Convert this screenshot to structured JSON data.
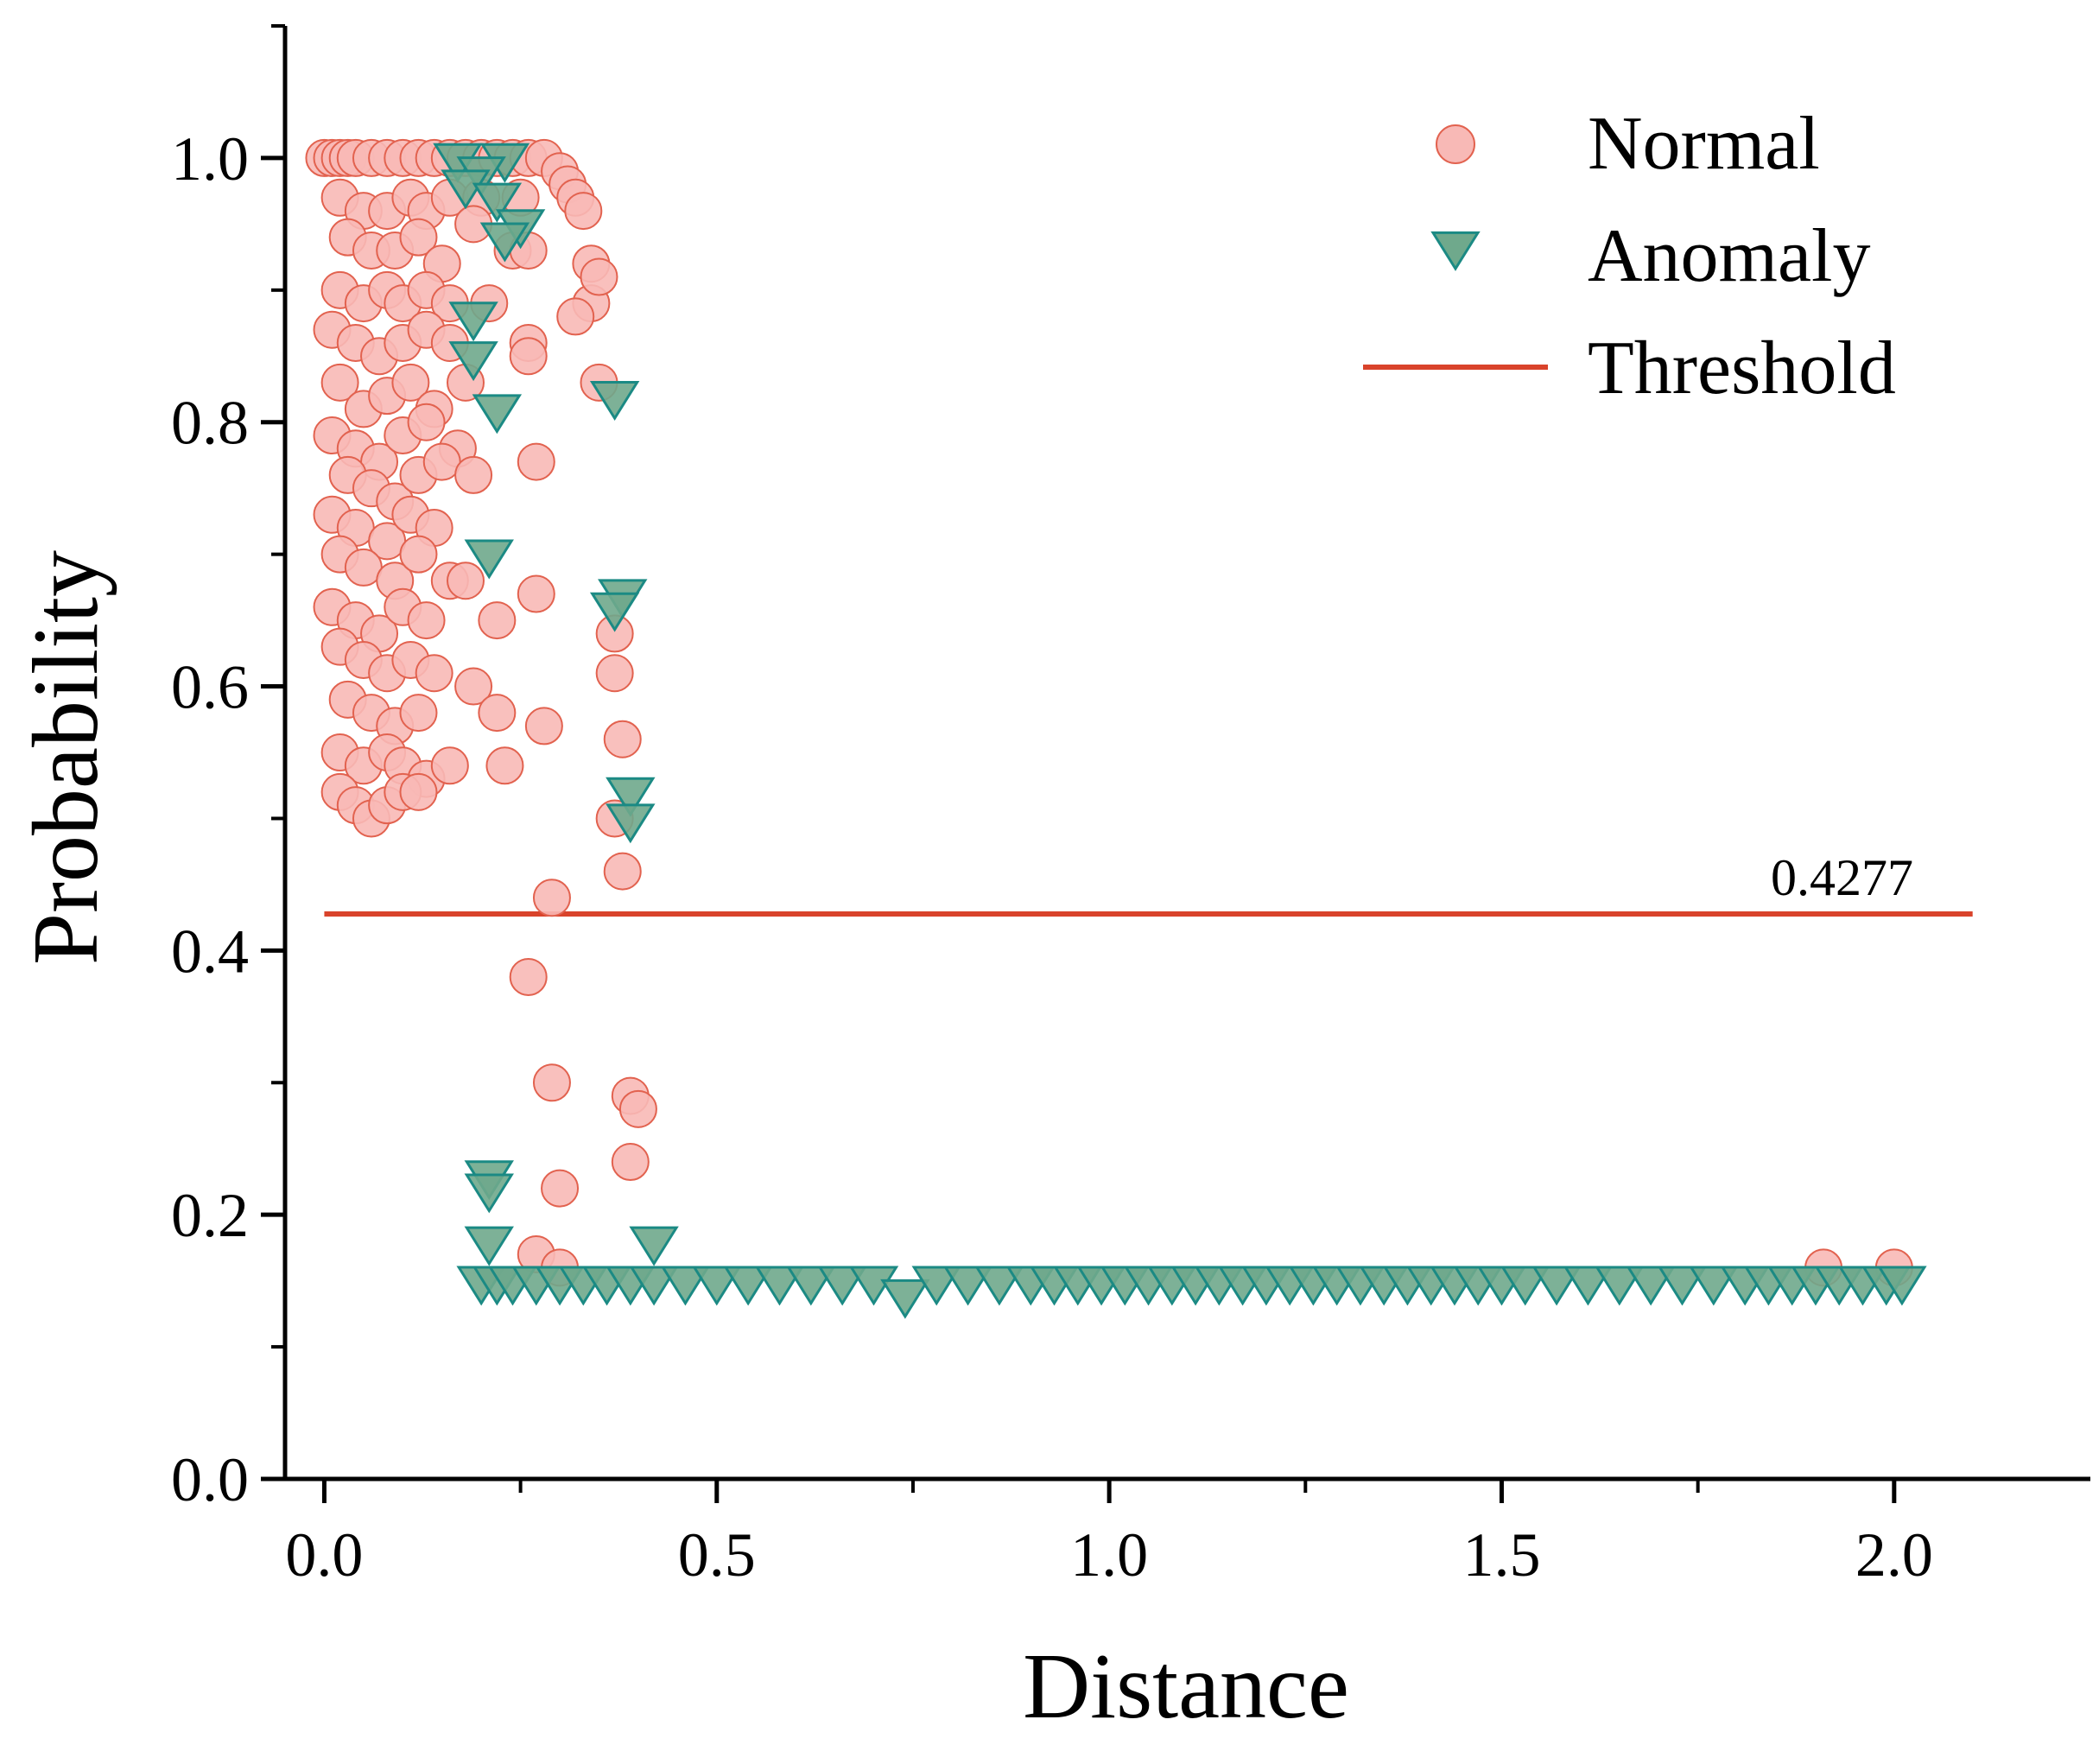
{
  "chart_data": {
    "type": "scatter",
    "title": "",
    "xlabel": "Distance",
    "ylabel": "Probability",
    "xlim": [
      -0.05,
      2.25
    ],
    "ylim": [
      0.0,
      1.1
    ],
    "x_ticks": [
      0.0,
      0.5,
      1.0,
      1.5,
      2.0
    ],
    "x_tick_labels": [
      "0.0",
      "0.5",
      "1.0",
      "1.5",
      "2.0"
    ],
    "y_ticks": [
      0.0,
      0.2,
      0.4,
      0.6,
      0.8,
      1.0
    ],
    "y_tick_labels": [
      "0.0",
      "0.2",
      "0.4",
      "0.6",
      "0.8",
      "1.0"
    ],
    "grid": false,
    "legend_position": "top-right",
    "colors": {
      "normal_fill": "#f8b9b6",
      "normal_edge": "#e2624f",
      "anomaly_fill": "#6fa98c",
      "anomaly_edge": "#1b8a84",
      "threshold": "#d9432b"
    },
    "threshold": {
      "name": "Threshold",
      "value": 0.4277,
      "label": "0.4277",
      "x_range": [
        0.0,
        2.1
      ]
    },
    "series": [
      {
        "name": "Normal",
        "marker": "circle",
        "points": [
          [
            0.0,
            1.0
          ],
          [
            0.01,
            1.0
          ],
          [
            0.02,
            1.0
          ],
          [
            0.03,
            1.0
          ],
          [
            0.04,
            1.0
          ],
          [
            0.06,
            1.0
          ],
          [
            0.08,
            1.0
          ],
          [
            0.1,
            1.0
          ],
          [
            0.12,
            1.0
          ],
          [
            0.14,
            1.0
          ],
          [
            0.16,
            1.0
          ],
          [
            0.18,
            1.0
          ],
          [
            0.2,
            1.0
          ],
          [
            0.22,
            1.0
          ],
          [
            0.24,
            1.0
          ],
          [
            0.26,
            1.0
          ],
          [
            0.28,
            1.0
          ],
          [
            0.3,
            0.99
          ],
          [
            0.31,
            0.98
          ],
          [
            0.32,
            0.97
          ],
          [
            0.33,
            0.96
          ],
          [
            0.02,
            0.97
          ],
          [
            0.05,
            0.96
          ],
          [
            0.08,
            0.96
          ],
          [
            0.11,
            0.97
          ],
          [
            0.13,
            0.96
          ],
          [
            0.16,
            0.97
          ],
          [
            0.2,
            0.97
          ],
          [
            0.25,
            0.97
          ],
          [
            0.03,
            0.94
          ],
          [
            0.06,
            0.93
          ],
          [
            0.09,
            0.93
          ],
          [
            0.12,
            0.94
          ],
          [
            0.15,
            0.92
          ],
          [
            0.19,
            0.95
          ],
          [
            0.24,
            0.93
          ],
          [
            0.26,
            0.93
          ],
          [
            0.02,
            0.9
          ],
          [
            0.05,
            0.89
          ],
          [
            0.08,
            0.9
          ],
          [
            0.1,
            0.89
          ],
          [
            0.13,
            0.9
          ],
          [
            0.16,
            0.89
          ],
          [
            0.21,
            0.89
          ],
          [
            0.34,
            0.92
          ],
          [
            0.34,
            0.89
          ],
          [
            0.35,
            0.91
          ],
          [
            0.32,
            0.88
          ],
          [
            0.01,
            0.87
          ],
          [
            0.04,
            0.86
          ],
          [
            0.07,
            0.85
          ],
          [
            0.1,
            0.86
          ],
          [
            0.13,
            0.87
          ],
          [
            0.16,
            0.86
          ],
          [
            0.26,
            0.86
          ],
          [
            0.26,
            0.85
          ],
          [
            0.02,
            0.83
          ],
          [
            0.05,
            0.81
          ],
          [
            0.08,
            0.82
          ],
          [
            0.11,
            0.83
          ],
          [
            0.14,
            0.81
          ],
          [
            0.18,
            0.83
          ],
          [
            0.35,
            0.83
          ],
          [
            0.01,
            0.79
          ],
          [
            0.04,
            0.78
          ],
          [
            0.07,
            0.77
          ],
          [
            0.1,
            0.79
          ],
          [
            0.13,
            0.8
          ],
          [
            0.17,
            0.78
          ],
          [
            0.27,
            0.77
          ],
          [
            0.03,
            0.76
          ],
          [
            0.06,
            0.75
          ],
          [
            0.09,
            0.74
          ],
          [
            0.12,
            0.76
          ],
          [
            0.15,
            0.77
          ],
          [
            0.19,
            0.76
          ],
          [
            0.01,
            0.73
          ],
          [
            0.04,
            0.72
          ],
          [
            0.08,
            0.71
          ],
          [
            0.11,
            0.73
          ],
          [
            0.14,
            0.72
          ],
          [
            0.02,
            0.7
          ],
          [
            0.05,
            0.69
          ],
          [
            0.09,
            0.68
          ],
          [
            0.12,
            0.7
          ],
          [
            0.16,
            0.68
          ],
          [
            0.18,
            0.68
          ],
          [
            0.27,
            0.67
          ],
          [
            0.37,
            0.64
          ],
          [
            0.01,
            0.66
          ],
          [
            0.04,
            0.65
          ],
          [
            0.07,
            0.64
          ],
          [
            0.1,
            0.66
          ],
          [
            0.13,
            0.65
          ],
          [
            0.22,
            0.65
          ],
          [
            0.02,
            0.63
          ],
          [
            0.05,
            0.62
          ],
          [
            0.08,
            0.61
          ],
          [
            0.11,
            0.62
          ],
          [
            0.14,
            0.61
          ],
          [
            0.19,
            0.6
          ],
          [
            0.37,
            0.61
          ],
          [
            0.03,
            0.59
          ],
          [
            0.06,
            0.58
          ],
          [
            0.09,
            0.57
          ],
          [
            0.12,
            0.58
          ],
          [
            0.22,
            0.58
          ],
          [
            0.28,
            0.57
          ],
          [
            0.38,
            0.56
          ],
          [
            0.02,
            0.55
          ],
          [
            0.05,
            0.54
          ],
          [
            0.08,
            0.55
          ],
          [
            0.1,
            0.54
          ],
          [
            0.13,
            0.53
          ],
          [
            0.16,
            0.54
          ],
          [
            0.23,
            0.54
          ],
          [
            0.02,
            0.52
          ],
          [
            0.04,
            0.51
          ],
          [
            0.06,
            0.5
          ],
          [
            0.08,
            0.51
          ],
          [
            0.1,
            0.52
          ],
          [
            0.12,
            0.52
          ],
          [
            0.37,
            0.5
          ],
          [
            0.38,
            0.46
          ],
          [
            0.29,
            0.44
          ],
          [
            0.26,
            0.38
          ],
          [
            0.29,
            0.3
          ],
          [
            0.39,
            0.29
          ],
          [
            0.4,
            0.28
          ],
          [
            0.39,
            0.24
          ],
          [
            0.3,
            0.22
          ],
          [
            0.27,
            0.17
          ],
          [
            0.3,
            0.16
          ],
          [
            1.91,
            0.16
          ],
          [
            2.0,
            0.16
          ]
        ]
      },
      {
        "name": "Anomaly",
        "marker": "triangle-down",
        "points": [
          [
            0.17,
            1.0
          ],
          [
            0.23,
            1.0
          ],
          [
            0.2,
            0.99
          ],
          [
            0.18,
            0.98
          ],
          [
            0.22,
            0.97
          ],
          [
            0.25,
            0.95
          ],
          [
            0.23,
            0.94
          ],
          [
            0.19,
            0.88
          ],
          [
            0.19,
            0.85
          ],
          [
            0.22,
            0.81
          ],
          [
            0.37,
            0.82
          ],
          [
            0.21,
            0.7
          ],
          [
            0.38,
            0.67
          ],
          [
            0.37,
            0.66
          ],
          [
            0.39,
            0.52
          ],
          [
            0.39,
            0.5
          ],
          [
            0.21,
            0.23
          ],
          [
            0.21,
            0.22
          ],
          [
            0.21,
            0.18
          ],
          [
            0.42,
            0.18
          ],
          [
            0.2,
            0.15
          ],
          [
            0.22,
            0.15
          ],
          [
            0.24,
            0.15
          ],
          [
            0.27,
            0.15
          ],
          [
            0.3,
            0.15
          ],
          [
            0.33,
            0.15
          ],
          [
            0.36,
            0.15
          ],
          [
            0.39,
            0.15
          ],
          [
            0.42,
            0.15
          ],
          [
            0.46,
            0.15
          ],
          [
            0.5,
            0.15
          ],
          [
            0.54,
            0.15
          ],
          [
            0.58,
            0.15
          ],
          [
            0.62,
            0.15
          ],
          [
            0.66,
            0.15
          ],
          [
            0.7,
            0.15
          ],
          [
            0.74,
            0.14
          ],
          [
            0.78,
            0.15
          ],
          [
            0.82,
            0.15
          ],
          [
            0.86,
            0.15
          ],
          [
            0.9,
            0.15
          ],
          [
            0.93,
            0.15
          ],
          [
            0.96,
            0.15
          ],
          [
            0.99,
            0.15
          ],
          [
            1.02,
            0.15
          ],
          [
            1.05,
            0.15
          ],
          [
            1.08,
            0.15
          ],
          [
            1.11,
            0.15
          ],
          [
            1.14,
            0.15
          ],
          [
            1.17,
            0.15
          ],
          [
            1.2,
            0.15
          ],
          [
            1.23,
            0.15
          ],
          [
            1.26,
            0.15
          ],
          [
            1.29,
            0.15
          ],
          [
            1.32,
            0.15
          ],
          [
            1.35,
            0.15
          ],
          [
            1.38,
            0.15
          ],
          [
            1.41,
            0.15
          ],
          [
            1.44,
            0.15
          ],
          [
            1.47,
            0.15
          ],
          [
            1.5,
            0.15
          ],
          [
            1.53,
            0.15
          ],
          [
            1.57,
            0.15
          ],
          [
            1.61,
            0.15
          ],
          [
            1.65,
            0.15
          ],
          [
            1.69,
            0.15
          ],
          [
            1.73,
            0.15
          ],
          [
            1.77,
            0.15
          ],
          [
            1.81,
            0.15
          ],
          [
            1.84,
            0.15
          ],
          [
            1.87,
            0.15
          ],
          [
            1.9,
            0.15
          ],
          [
            1.93,
            0.15
          ],
          [
            1.96,
            0.15
          ],
          [
            1.99,
            0.15
          ],
          [
            2.01,
            0.15
          ]
        ]
      }
    ]
  }
}
